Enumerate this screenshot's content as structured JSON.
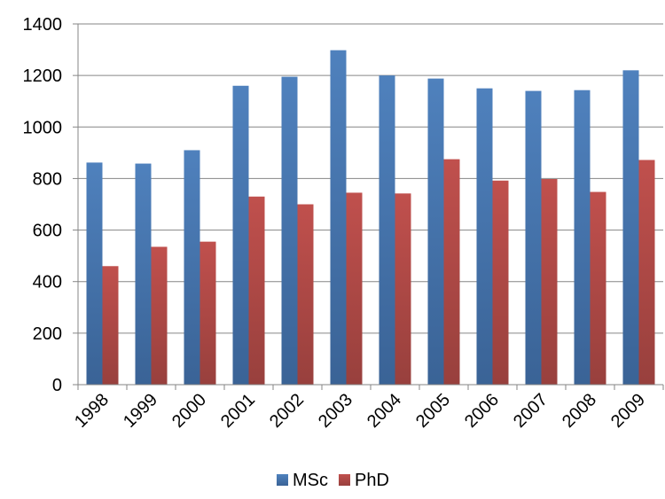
{
  "chart_data": {
    "type": "bar",
    "title": "",
    "xlabel": "",
    "ylabel": "",
    "categories": [
      "1998",
      "1999",
      "2000",
      "2001",
      "2002",
      "2003",
      "2004",
      "2005",
      "2006",
      "2007",
      "2008",
      "2009"
    ],
    "series": [
      {
        "name": "MSc",
        "color": "#4a7ebb",
        "values": [
          862,
          858,
          910,
          1160,
          1195,
          1298,
          1200,
          1188,
          1150,
          1140,
          1143,
          1220
        ]
      },
      {
        "name": "PhD",
        "color": "#be4b48",
        "values": [
          460,
          535,
          555,
          730,
          700,
          745,
          742,
          875,
          792,
          798,
          748,
          872
        ]
      }
    ],
    "ylim": [
      0,
      1400
    ],
    "yticks": [
      0,
      200,
      400,
      600,
      800,
      1000,
      1200,
      1400
    ],
    "grid": true,
    "legend_position": "bottom"
  }
}
